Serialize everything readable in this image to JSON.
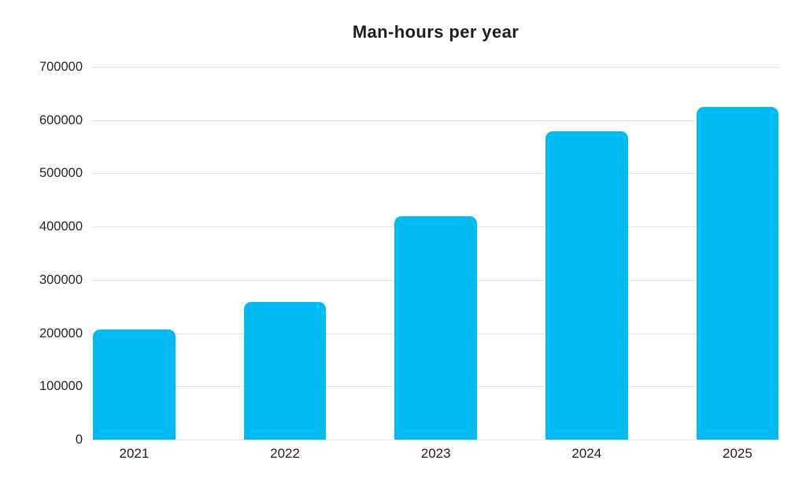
{
  "chart_data": {
    "type": "bar",
    "title": "Man-hours per year",
    "categories": [
      "2021",
      "2022",
      "2023",
      "2024",
      "2025"
    ],
    "values": [
      207000,
      258000,
      419000,
      579000,
      625000
    ],
    "xlabel": "",
    "ylabel": "",
    "ylim": [
      0,
      700000
    ],
    "yticks": [
      0,
      100000,
      200000,
      300000,
      400000,
      500000,
      600000,
      700000
    ],
    "grid": true,
    "legend": "none",
    "bar_color": "#00bcf2",
    "gridline_color": "#e4e4e4",
    "label_color": "#262626",
    "title_color": "#1e1e1e",
    "background_color": "#ffffff"
  }
}
